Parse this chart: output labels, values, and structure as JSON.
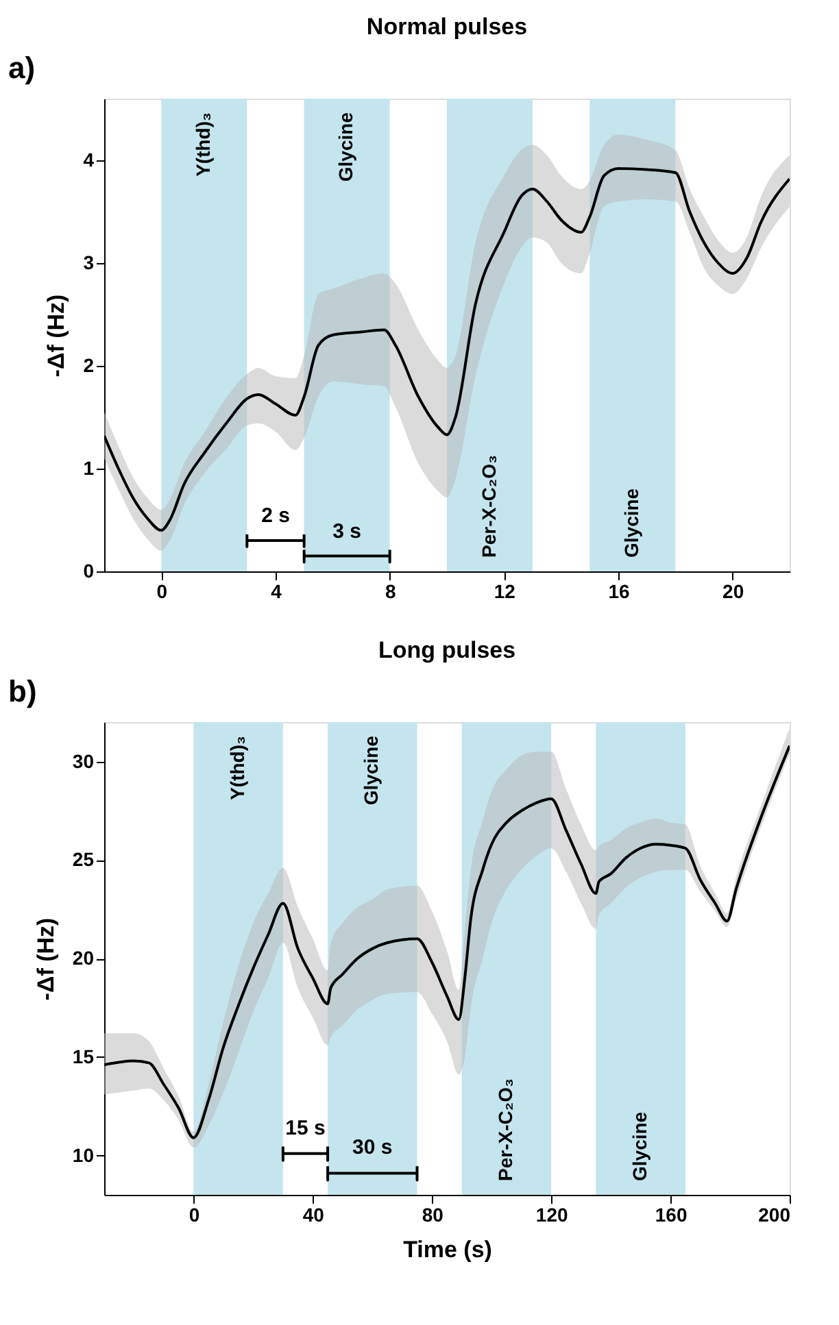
{
  "chart_data": [
    {
      "type": "line",
      "title": "Normal pulses",
      "ylabel": "-Δf (Hz)",
      "xlim": [
        -2,
        22
      ],
      "xticks": [
        0,
        4,
        8,
        12,
        16,
        20
      ],
      "ylim": [
        0,
        4.6
      ],
      "yticks": [
        0,
        1,
        2,
        3,
        4
      ],
      "grid": false,
      "annotations": [
        "a)",
        "2 s",
        "3 s"
      ],
      "bands": [
        {
          "axis": "x",
          "from": 0,
          "to": 3,
          "label": "Y(thd)₃",
          "color": "#c5e5ee"
        },
        {
          "axis": "x",
          "from": 5,
          "to": 8,
          "label": "Glycine",
          "color": "#c5e5ee"
        },
        {
          "axis": "x",
          "from": 10,
          "to": 13,
          "label": "Per-X-C₂O₃",
          "color": "#c5e5ee"
        },
        {
          "axis": "x",
          "from": 15,
          "to": 18,
          "label": "Glycine",
          "color": "#c5e5ee"
        }
      ],
      "series": [
        {
          "type": "line",
          "color": "#000000",
          "marker": "none",
          "line_style": "solid",
          "x": [
            -2,
            -1.5,
            -1,
            -0.5,
            0,
            0.3,
            0.8,
            1.5,
            2.3,
            3,
            3.4,
            4,
            4.7,
            5,
            5.5,
            6,
            7,
            7.8,
            8.2,
            9,
            9.7,
            10,
            10.3,
            11,
            12,
            12.6,
            13,
            13.5,
            14,
            14.7,
            15,
            15.5,
            16,
            17,
            18,
            18.5,
            19,
            19.5,
            20,
            20.5,
            21,
            22
          ],
          "values": [
            1.32,
            1.0,
            0.72,
            0.52,
            0.4,
            0.5,
            0.85,
            1.15,
            1.45,
            1.68,
            1.72,
            1.63,
            1.52,
            1.7,
            2.2,
            2.3,
            2.33,
            2.35,
            2.2,
            1.7,
            1.4,
            1.33,
            1.5,
            2.6,
            3.3,
            3.65,
            3.72,
            3.6,
            3.42,
            3.3,
            3.45,
            3.85,
            3.92,
            3.91,
            3.88,
            3.5,
            3.2,
            3.0,
            2.9,
            3.05,
            3.4,
            3.82
          ],
          "lower": [
            1.1,
            0.8,
            0.52,
            0.32,
            0.2,
            0.3,
            0.65,
            0.95,
            1.2,
            1.42,
            1.44,
            1.36,
            1.18,
            1.3,
            1.7,
            1.85,
            1.82,
            1.8,
            1.6,
            1.05,
            0.78,
            0.72,
            0.9,
            1.9,
            2.8,
            3.15,
            3.25,
            3.2,
            3.0,
            2.9,
            3.1,
            3.55,
            3.6,
            3.62,
            3.6,
            3.3,
            2.95,
            2.78,
            2.7,
            2.85,
            3.15,
            3.55
          ],
          "upper": [
            1.55,
            1.22,
            0.92,
            0.72,
            0.6,
            0.7,
            1.05,
            1.35,
            1.7,
            1.92,
            1.98,
            1.9,
            1.88,
            2.1,
            2.7,
            2.75,
            2.85,
            2.9,
            2.8,
            2.35,
            2.05,
            1.98,
            2.1,
            3.2,
            3.85,
            4.1,
            4.15,
            4.05,
            3.85,
            3.72,
            3.8,
            4.15,
            4.25,
            4.2,
            4.1,
            3.72,
            3.45,
            3.22,
            3.1,
            3.25,
            3.65,
            4.05
          ]
        },
        {
          "type": "line",
          "color": "#000000",
          "line_style": "solid",
          "x": [
            3,
            3,
            3,
            5,
            5,
            5
          ],
          "values": [
            0.36,
            0.24,
            0.3,
            0.3,
            0.24,
            0.36
          ]
        },
        {
          "type": "line",
          "color": "#000000",
          "line_style": "solid",
          "x": [
            5,
            5,
            5,
            8,
            8,
            8
          ],
          "values": [
            0.21,
            0.09,
            0.15,
            0.15,
            0.09,
            0.21
          ]
        }
      ]
    },
    {
      "type": "line",
      "title": "Long pulses",
      "xlabel": "Time (s)",
      "ylabel": "-Δf (Hz)",
      "xlim": [
        -30,
        200
      ],
      "xticks": [
        0,
        40,
        80,
        120,
        160,
        200
      ],
      "ylim": [
        8,
        32
      ],
      "yticks": [
        10,
        15,
        20,
        25,
        30
      ],
      "grid": false,
      "annotations": [
        "b)",
        "15 s",
        "30 s"
      ],
      "bands": [
        {
          "axis": "x",
          "from": 0,
          "to": 30,
          "label": "Y(thd)₃",
          "color": "#c5e5ee"
        },
        {
          "axis": "x",
          "from": 45,
          "to": 75,
          "label": "Glycine",
          "color": "#c5e5ee"
        },
        {
          "axis": "x",
          "from": 90,
          "to": 120,
          "label": "Per-X-C₂O₃",
          "color": "#c5e5ee"
        },
        {
          "axis": "x",
          "from": 135,
          "to": 165,
          "label": "Glycine",
          "color": "#c5e5ee"
        }
      ],
      "series": [
        {
          "type": "line",
          "color": "#000000",
          "marker": "none",
          "line_style": "solid",
          "x": [
            -30,
            -20,
            -15,
            -10,
            -5,
            0,
            5,
            10,
            15,
            20,
            25,
            30,
            35,
            40,
            45,
            46,
            50,
            55,
            60,
            65,
            75,
            80,
            85,
            89,
            91,
            93,
            97,
            100,
            105,
            110,
            115,
            120,
            125,
            130,
            135,
            136,
            140,
            145,
            150,
            155,
            160,
            165,
            170,
            175,
            179,
            182,
            190,
            200
          ],
          "values": [
            14.6,
            14.8,
            14.7,
            13.6,
            12.4,
            10.9,
            12.8,
            15.5,
            17.6,
            19.5,
            21.2,
            22.8,
            20.5,
            19.0,
            17.7,
            18.5,
            19.2,
            20.0,
            20.5,
            20.8,
            21.0,
            19.8,
            18.1,
            16.9,
            19.0,
            22.0,
            24.5,
            25.8,
            26.9,
            27.5,
            27.9,
            28.1,
            26.5,
            24.8,
            23.3,
            23.9,
            24.3,
            25.1,
            25.6,
            25.8,
            25.75,
            25.6,
            24.0,
            22.8,
            21.9,
            23.5,
            27.0,
            30.8
          ],
          "lower": [
            13.1,
            13.3,
            13.4,
            12.8,
            11.8,
            10.4,
            11.5,
            13.2,
            15.2,
            17.3,
            19.0,
            20.8,
            18.5,
            17.0,
            15.6,
            16.0,
            16.6,
            17.4,
            17.9,
            18.2,
            18.3,
            17.2,
            15.8,
            14.1,
            15.0,
            17.5,
            20.0,
            21.8,
            23.5,
            24.5,
            25.2,
            25.6,
            24.4,
            22.8,
            21.5,
            22.2,
            22.8,
            23.6,
            24.1,
            24.4,
            24.5,
            24.5,
            23.4,
            22.4,
            21.6,
            23.0,
            26.5,
            30.4
          ],
          "upper": [
            16.2,
            16.2,
            15.8,
            14.4,
            13.0,
            11.2,
            13.6,
            16.8,
            19.6,
            21.8,
            23.3,
            24.6,
            22.6,
            21.0,
            19.4,
            20.8,
            21.8,
            22.6,
            23.0,
            23.5,
            23.7,
            22.4,
            20.4,
            18.4,
            21.5,
            24.5,
            27.0,
            28.5,
            29.6,
            30.3,
            30.5,
            30.5,
            28.6,
            26.8,
            25.5,
            25.7,
            26.0,
            26.6,
            26.9,
            27.1,
            26.9,
            26.8,
            24.7,
            23.3,
            22.3,
            24.1,
            27.6,
            31.7
          ]
        },
        {
          "type": "line",
          "color": "#000000",
          "line_style": "solid",
          "x": [
            30,
            30,
            30,
            45,
            45,
            45
          ],
          "values": [
            10.45,
            9.75,
            10.1,
            10.1,
            9.75,
            10.45
          ]
        },
        {
          "type": "line",
          "color": "#000000",
          "line_style": "solid",
          "x": [
            45,
            45,
            45,
            75,
            75,
            75
          ],
          "values": [
            9.45,
            8.75,
            9.1,
            9.1,
            8.75,
            9.45
          ]
        }
      ]
    }
  ]
}
